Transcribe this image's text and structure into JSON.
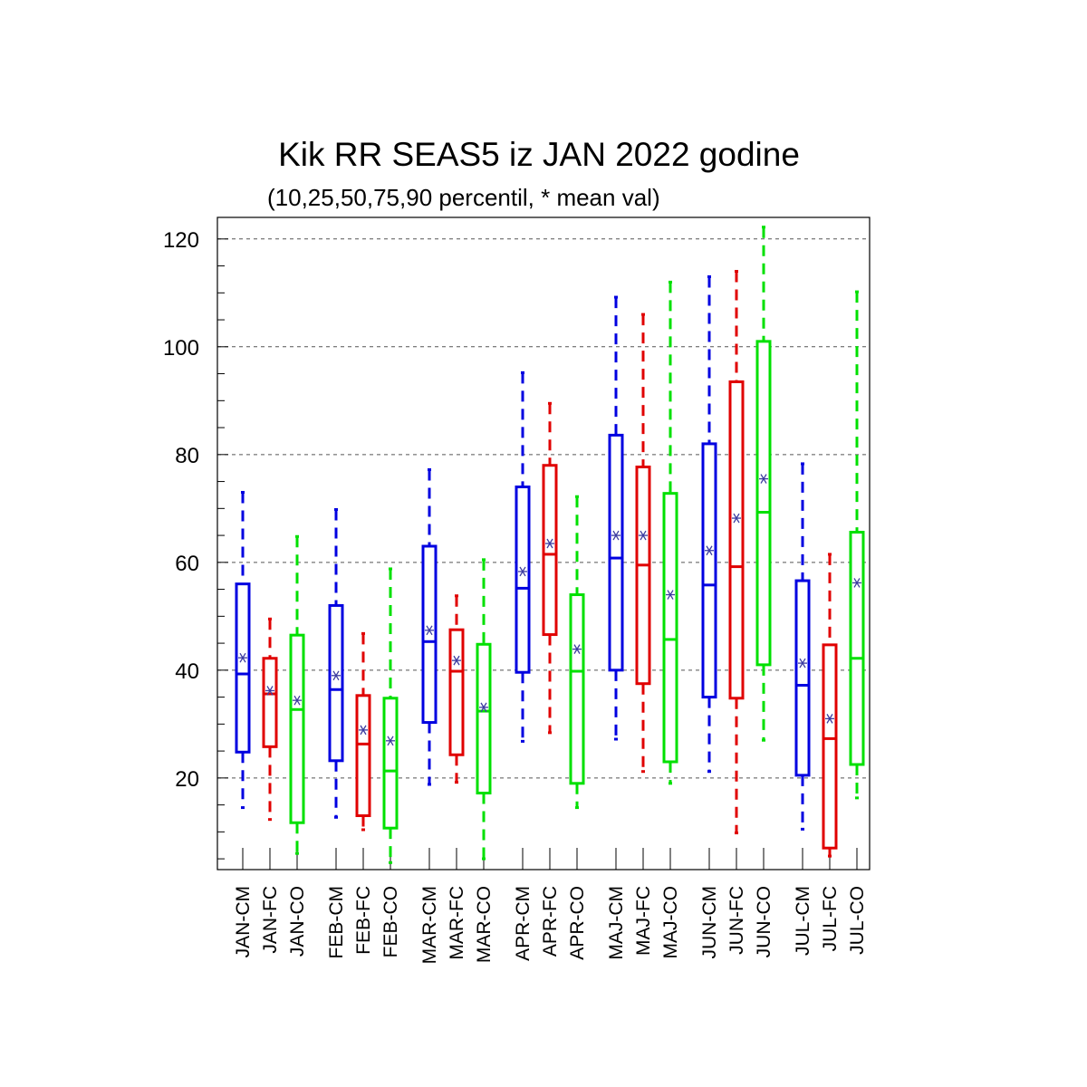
{
  "chart_data": {
    "type": "boxplot",
    "title": "Kik RR SEAS5 iz JAN 2022 godine",
    "subtitle": "(10,25,50,75,90 percentil, * mean val)",
    "ylim": [
      3,
      124
    ],
    "yticks": [
      20,
      40,
      60,
      80,
      100,
      120
    ],
    "grid": "horizontal dashed",
    "colors": {
      "CM": "#0000e0",
      "FC": "#e00000",
      "CO": "#00e000",
      "mean_marker": "#3c3ca0"
    },
    "categories": [
      "JAN-CM",
      "JAN-FC",
      "JAN-CO",
      "FEB-CM",
      "FEB-FC",
      "FEB-CO",
      "MAR-CM",
      "MAR-FC",
      "MAR-CO",
      "APR-CM",
      "APR-FC",
      "APR-CO",
      "MAJ-CM",
      "MAJ-FC",
      "MAJ-CO",
      "JUN-CM",
      "JUN-FC",
      "JUN-CO",
      "JUL-CM",
      "JUL-FC",
      "JUL-CO"
    ],
    "boxes": [
      {
        "label": "JAN-CM",
        "series": "CM",
        "p10": 14.5,
        "p25": 24.8,
        "p50": 39.3,
        "p75": 56.0,
        "p90": 73.0,
        "mean": 42.3
      },
      {
        "label": "JAN-FC",
        "series": "FC",
        "p10": 12.3,
        "p25": 25.8,
        "p50": 35.6,
        "p75": 42.2,
        "p90": 49.5,
        "mean": 36.2
      },
      {
        "label": "JAN-CO",
        "series": "CO",
        "p10": 6.0,
        "p25": 11.7,
        "p50": 32.7,
        "p75": 46.5,
        "p90": 64.8,
        "mean": 34.4
      },
      {
        "label": "FEB-CM",
        "series": "CM",
        "p10": 12.7,
        "p25": 23.2,
        "p50": 36.4,
        "p75": 52.0,
        "p90": 69.8,
        "mean": 39.0
      },
      {
        "label": "FEB-FC",
        "series": "FC",
        "p10": 10.4,
        "p25": 13.0,
        "p50": 26.3,
        "p75": 35.3,
        "p90": 46.8,
        "mean": 28.9
      },
      {
        "label": "FEB-CO",
        "series": "CO",
        "p10": 4.3,
        "p25": 10.7,
        "p50": 21.3,
        "p75": 34.8,
        "p90": 58.8,
        "mean": 26.9
      },
      {
        "label": "MAR-CM",
        "series": "CM",
        "p10": 18.8,
        "p25": 30.3,
        "p50": 45.3,
        "p75": 63.0,
        "p90": 77.2,
        "mean": 47.4
      },
      {
        "label": "MAR-FC",
        "series": "FC",
        "p10": 19.2,
        "p25": 24.3,
        "p50": 39.8,
        "p75": 47.5,
        "p90": 53.8,
        "mean": 41.8
      },
      {
        "label": "MAR-CO",
        "series": "CO",
        "p10": 5.0,
        "p25": 17.2,
        "p50": 32.4,
        "p75": 44.8,
        "p90": 60.5,
        "mean": 33.1
      },
      {
        "label": "APR-CM",
        "series": "CM",
        "p10": 26.8,
        "p25": 39.6,
        "p50": 55.2,
        "p75": 74.0,
        "p90": 95.2,
        "mean": 58.3
      },
      {
        "label": "APR-FC",
        "series": "FC",
        "p10": 28.4,
        "p25": 46.6,
        "p50": 61.5,
        "p75": 78.0,
        "p90": 89.5,
        "mean": 63.5
      },
      {
        "label": "APR-CO",
        "series": "CO",
        "p10": 14.5,
        "p25": 19.0,
        "p50": 39.8,
        "p75": 54.0,
        "p90": 72.2,
        "mean": 43.9
      },
      {
        "label": "MAJ-CM",
        "series": "CM",
        "p10": 27.2,
        "p25": 40.0,
        "p50": 60.8,
        "p75": 83.6,
        "p90": 109.2,
        "mean": 65.0
      },
      {
        "label": "MAJ-FC",
        "series": "FC",
        "p10": 21.2,
        "p25": 37.5,
        "p50": 59.5,
        "p75": 77.7,
        "p90": 106.0,
        "mean": 65.0
      },
      {
        "label": "MAJ-CO",
        "series": "CO",
        "p10": 19.0,
        "p25": 23.0,
        "p50": 45.7,
        "p75": 72.8,
        "p90": 112.0,
        "mean": 54.0
      },
      {
        "label": "JUN-CM",
        "series": "CM",
        "p10": 21.2,
        "p25": 35.0,
        "p50": 55.8,
        "p75": 82.0,
        "p90": 113.0,
        "mean": 62.2
      },
      {
        "label": "JUN-FC",
        "series": "FC",
        "p10": 9.8,
        "p25": 34.8,
        "p50": 59.2,
        "p75": 93.5,
        "p90": 114.0,
        "mean": 68.2
      },
      {
        "label": "JUN-CO",
        "series": "CO",
        "p10": 27.0,
        "p25": 41.0,
        "p50": 69.3,
        "p75": 101.0,
        "p90": 122.2,
        "mean": 75.5
      },
      {
        "label": "JUL-CM",
        "series": "CM",
        "p10": 10.5,
        "p25": 20.5,
        "p50": 37.2,
        "p75": 56.6,
        "p90": 78.3,
        "mean": 41.3
      },
      {
        "label": "JUL-FC",
        "series": "FC",
        "p10": 5.5,
        "p25": 7.0,
        "p50": 27.3,
        "p75": 44.7,
        "p90": 61.5,
        "mean": 31.0
      },
      {
        "label": "JUL-CO",
        "series": "CO",
        "p10": 16.3,
        "p25": 22.5,
        "p50": 42.2,
        "p75": 65.6,
        "p90": 110.2,
        "mean": 56.2
      }
    ]
  }
}
